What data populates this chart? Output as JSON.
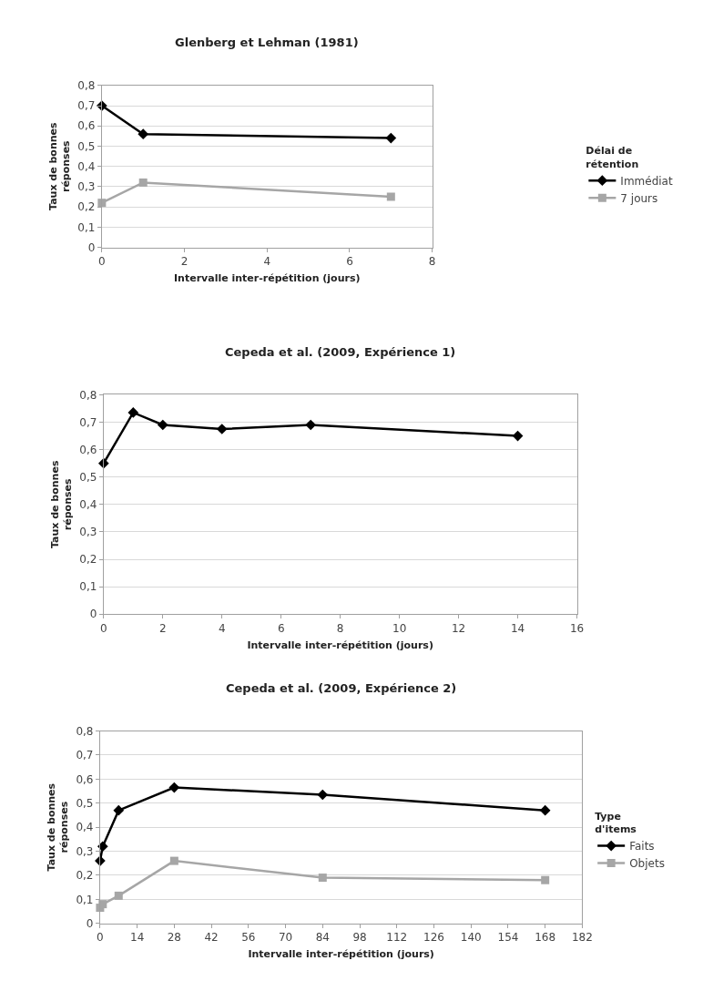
{
  "chart_data": [
    {
      "type": "line",
      "title": "Glenberg et Lehman (1981)",
      "xlabel": "Intervalle inter-répétition (jours)",
      "ylabel": "Taux de bonnes réponses",
      "legend_title": "Délai de rétention",
      "legend": "right",
      "grid": "y",
      "x": [
        0,
        1,
        7
      ],
      "series": [
        {
          "name": "Immédiat",
          "color": "#000000",
          "marker": "diamond",
          "values": [
            0.7,
            0.56,
            0.54
          ]
        },
        {
          "name": "7 jours",
          "color": "#a6a6a6",
          "marker": "square",
          "values": [
            0.22,
            0.32,
            0.25
          ]
        }
      ],
      "xlim": [
        0,
        8
      ],
      "xticks": [
        0,
        2,
        4,
        6,
        8
      ],
      "ylim": [
        0,
        0.8
      ],
      "yticks": [
        0,
        {
          "value": 0.1,
          "label": "0,1"
        },
        {
          "value": 0.2,
          "label": "0,2"
        },
        {
          "value": 0.3,
          "label": "0,3"
        },
        {
          "value": 0.4,
          "label": "0,4"
        },
        {
          "value": 0.5,
          "label": "0,5"
        },
        {
          "value": 0.6,
          "label": "0,6"
        },
        {
          "value": 0.7,
          "label": "0,7"
        },
        {
          "value": 0.8,
          "label": "0,8"
        }
      ]
    },
    {
      "type": "line",
      "title": "Cepeda et al. (2009, Expérience 1)",
      "xlabel": "Intervalle inter-répétition (jours)",
      "ylabel": "Taux de bonnes réponses",
      "grid": "y",
      "x": [
        0,
        1,
        2,
        4,
        7,
        14
      ],
      "series": [
        {
          "color": "#000000",
          "marker": "diamond",
          "values": [
            0.55,
            0.735,
            0.69,
            0.675,
            0.69,
            0.65
          ]
        }
      ],
      "xlim": [
        0,
        16
      ],
      "xticks": [
        0,
        2,
        4,
        6,
        8,
        10,
        12,
        14,
        16
      ],
      "ylim": [
        0,
        0.8
      ],
      "yticks": [
        0,
        {
          "value": 0.1,
          "label": "0,1"
        },
        {
          "value": 0.2,
          "label": "0,2"
        },
        {
          "value": 0.3,
          "label": "0,3"
        },
        {
          "value": 0.4,
          "label": "0,4"
        },
        {
          "value": 0.5,
          "label": "0,5"
        },
        {
          "value": 0.6,
          "label": "0,6"
        },
        {
          "value": 0.7,
          "label": "0,7"
        },
        {
          "value": 0.8,
          "label": "0,8"
        }
      ]
    },
    {
      "type": "line",
      "title": "Cepeda et al. (2009, Expérience 2)",
      "xlabel": "Intervalle inter-répétition (jours)",
      "ylabel": "Taux de bonnes réponses",
      "legend_title": "Type d'items",
      "legend": "right",
      "grid": "y",
      "x": [
        0,
        1,
        7,
        28,
        84,
        168
      ],
      "series": [
        {
          "name": "Faits",
          "color": "#000000",
          "marker": "diamond",
          "values": [
            0.26,
            0.32,
            0.47,
            0.565,
            0.535,
            0.47
          ]
        },
        {
          "name": "Objets",
          "color": "#a6a6a6",
          "marker": "square",
          "values": [
            0.065,
            0.08,
            0.115,
            0.26,
            0.19,
            0.18
          ]
        }
      ],
      "xlim": [
        0,
        182
      ],
      "xticks": [
        0,
        14,
        28,
        42,
        56,
        70,
        84,
        98,
        112,
        126,
        140,
        154,
        168,
        182
      ],
      "ylim": [
        0,
        0.8
      ],
      "yticks": [
        0,
        {
          "value": 0.1,
          "label": "0,1"
        },
        {
          "value": 0.2,
          "label": "0,2"
        },
        {
          "value": 0.3,
          "label": "0,3"
        },
        {
          "value": 0.4,
          "label": "0,4"
        },
        {
          "value": 0.5,
          "label": "0,5"
        },
        {
          "value": 0.6,
          "label": "0,6"
        },
        {
          "value": 0.7,
          "label": "0,7"
        },
        {
          "value": 0.8,
          "label": "0,8"
        }
      ]
    }
  ]
}
